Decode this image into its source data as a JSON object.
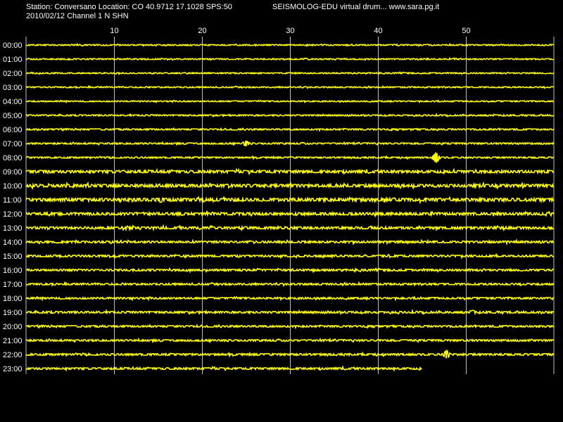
{
  "header": {
    "station_line": "Station: Conversano Location: CO 40.9712 17.1028 SPS:50",
    "date_line": "2010/02/12  Channel 1 N SHN",
    "title": "SEISMOLOG-EDU virtual drum... www.sara.pg.it"
  },
  "colors": {
    "background": "#000000",
    "trace": "#ffff00",
    "grid": "#bfbfbf",
    "text": "#ffffff"
  },
  "chart_data": {
    "type": "line",
    "title": "",
    "xlabel": "",
    "ylabel": "",
    "x_range_minutes": [
      0,
      60
    ],
    "x_ticks": [
      "10",
      "20",
      "30",
      "40",
      "50"
    ],
    "x_tick_values": [
      10,
      20,
      30,
      40,
      50
    ],
    "rows": [
      {
        "label": "00:00",
        "noise": 0.8
      },
      {
        "label": "01:00",
        "noise": 0.8
      },
      {
        "label": "02:00",
        "noise": 0.8
      },
      {
        "label": "03:00",
        "noise": 0.8
      },
      {
        "label": "04:00",
        "noise": 0.8
      },
      {
        "label": "05:00",
        "noise": 0.9
      },
      {
        "label": "06:00",
        "noise": 1.0
      },
      {
        "label": "07:00",
        "noise": 1.0,
        "events": [
          {
            "minute": 25,
            "amplitude": 4
          }
        ]
      },
      {
        "label": "08:00",
        "noise": 1.0,
        "events": [
          {
            "minute": 46.6,
            "amplitude": 8
          }
        ]
      },
      {
        "label": "09:00",
        "noise": 1.8
      },
      {
        "label": "10:00",
        "noise": 2.0
      },
      {
        "label": "11:00",
        "noise": 2.2,
        "events": [
          {
            "minute": 15.3,
            "amplitude": 4
          }
        ]
      },
      {
        "label": "12:00",
        "noise": 1.8
      },
      {
        "label": "13:00",
        "noise": 1.6
      },
      {
        "label": "14:00",
        "noise": 1.4
      },
      {
        "label": "15:00",
        "noise": 1.3
      },
      {
        "label": "16:00",
        "noise": 1.3
      },
      {
        "label": "17:00",
        "noise": 1.2
      },
      {
        "label": "18:00",
        "noise": 1.2
      },
      {
        "label": "19:00",
        "noise": 1.3,
        "events": [
          {
            "minute": 50.8,
            "amplitude": 3
          }
        ]
      },
      {
        "label": "20:00",
        "noise": 1.2
      },
      {
        "label": "21:00",
        "noise": 1.2
      },
      {
        "label": "22:00",
        "noise": 1.3,
        "events": [
          {
            "minute": 47.8,
            "amplitude": 6
          }
        ]
      },
      {
        "label": "23:00",
        "noise": 1.3,
        "end_minute": 45
      }
    ]
  }
}
